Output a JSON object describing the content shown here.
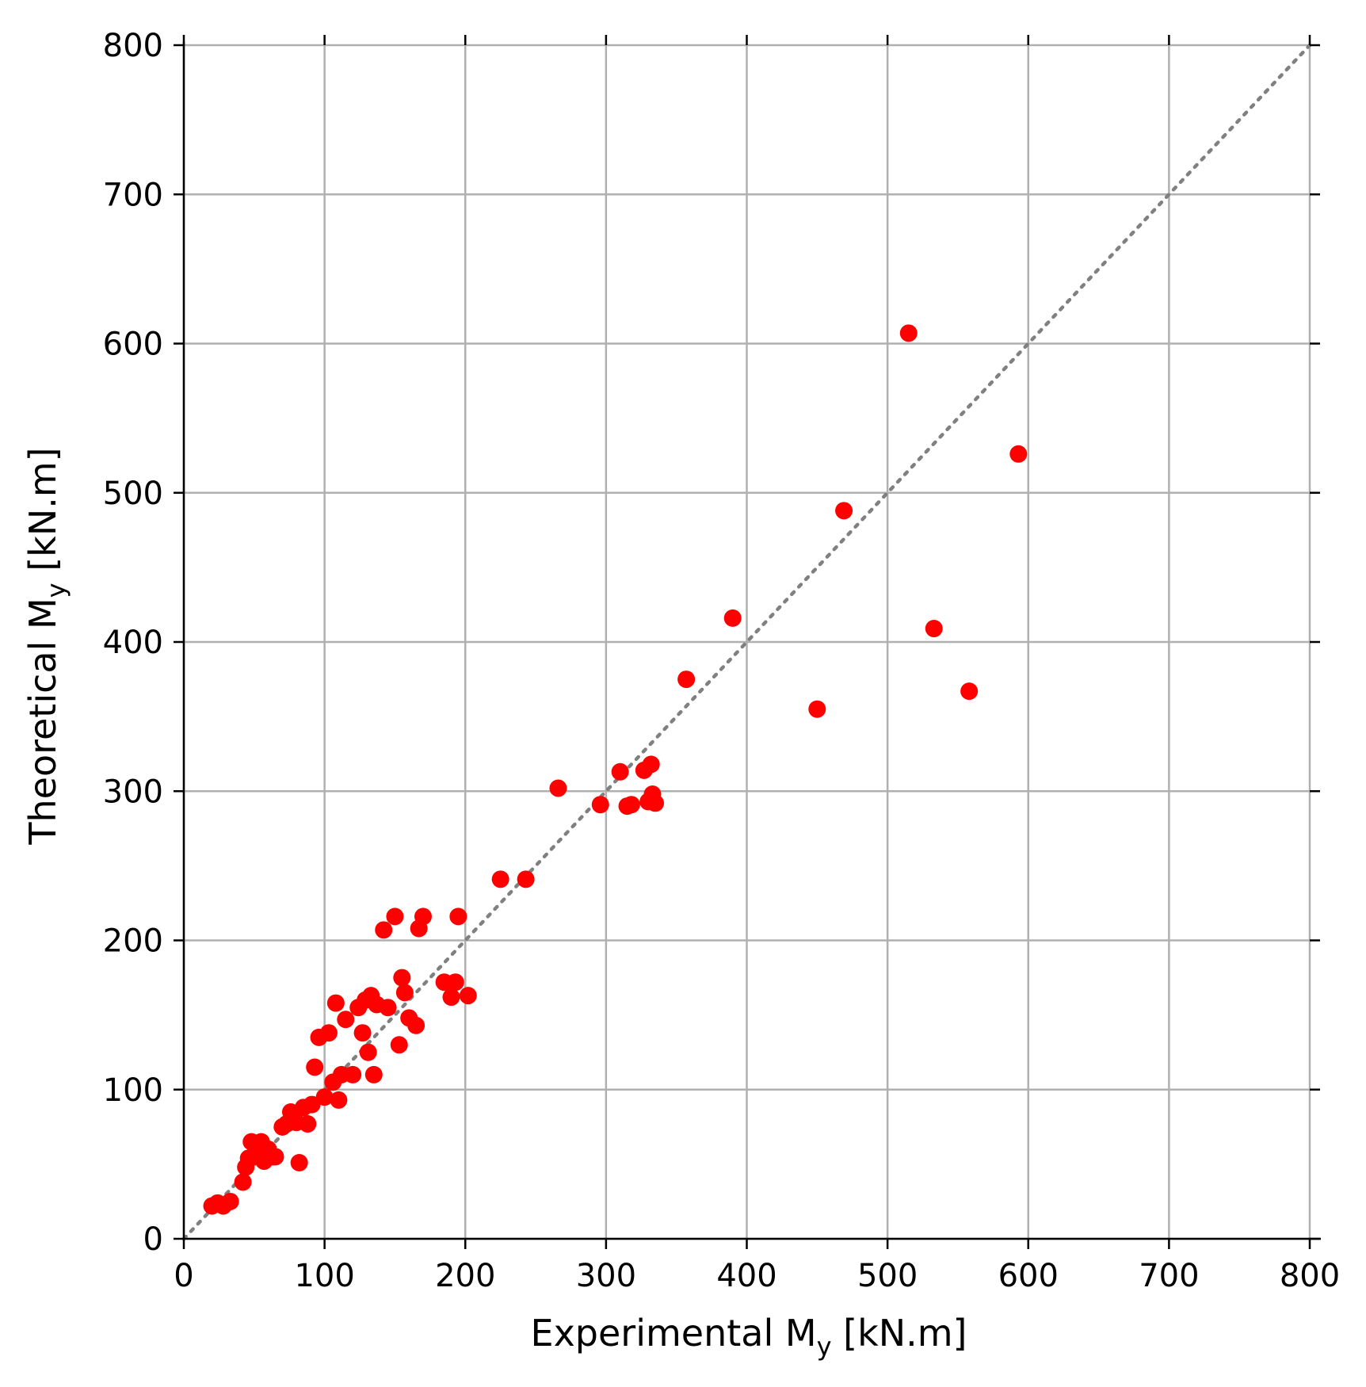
{
  "chart_data": {
    "type": "scatter",
    "title": "",
    "xlabel": {
      "main": "Experimental M",
      "sub": "y",
      "suffix": " [kN.m]"
    },
    "ylabel": {
      "main": "Theoretical M",
      "sub": "y",
      "suffix": " [kN.m]"
    },
    "xlim": [
      0,
      800
    ],
    "ylim": [
      0,
      800
    ],
    "xticks": [
      0,
      100,
      200,
      300,
      400,
      500,
      600,
      700,
      800
    ],
    "yticks": [
      0,
      100,
      200,
      300,
      400,
      500,
      600,
      700,
      800
    ],
    "xtick_labels": [
      "0",
      "100",
      "200",
      "300",
      "400",
      "500",
      "600",
      "700",
      "800"
    ],
    "ytick_labels": [
      "0",
      "100",
      "200",
      "300",
      "400",
      "500",
      "600",
      "700",
      "800"
    ],
    "grid": true,
    "marker_color": "#ff0000",
    "reference_line": {
      "style": "dotted",
      "color": "#808080",
      "from": [
        0,
        0
      ],
      "to": [
        800,
        800
      ]
    },
    "series": [
      {
        "x": [
          20,
          24,
          28,
          33,
          42,
          44,
          46,
          48,
          50,
          52,
          55,
          57,
          60,
          63,
          65,
          70,
          73,
          76,
          80,
          82,
          85,
          88,
          91,
          93,
          96,
          100,
          103,
          106,
          108,
          110,
          112,
          115,
          120,
          124,
          127,
          129,
          131,
          133,
          135,
          137,
          142,
          145,
          150,
          153,
          155,
          157,
          160,
          165,
          167,
          170,
          185,
          190,
          193,
          195,
          202,
          225,
          243,
          266,
          296,
          310,
          315,
          318,
          327,
          330,
          332,
          333,
          335,
          357,
          390,
          450,
          469,
          515,
          533,
          558,
          593
        ],
        "y": [
          22,
          24,
          22,
          25,
          38,
          48,
          54,
          65,
          55,
          58,
          65,
          52,
          60,
          55,
          55,
          75,
          77,
          85,
          78,
          51,
          88,
          77,
          90,
          115,
          135,
          95,
          138,
          105,
          158,
          93,
          110,
          147,
          110,
          155,
          138,
          160,
          125,
          163,
          110,
          157,
          207,
          155,
          216,
          130,
          175,
          165,
          148,
          143,
          208,
          216,
          172,
          162,
          172,
          216,
          163,
          241,
          241,
          302,
          291,
          313,
          290,
          291,
          314,
          293,
          318,
          298,
          292,
          375,
          416,
          355,
          488,
          607,
          409,
          367,
          526
        ]
      }
    ]
  }
}
